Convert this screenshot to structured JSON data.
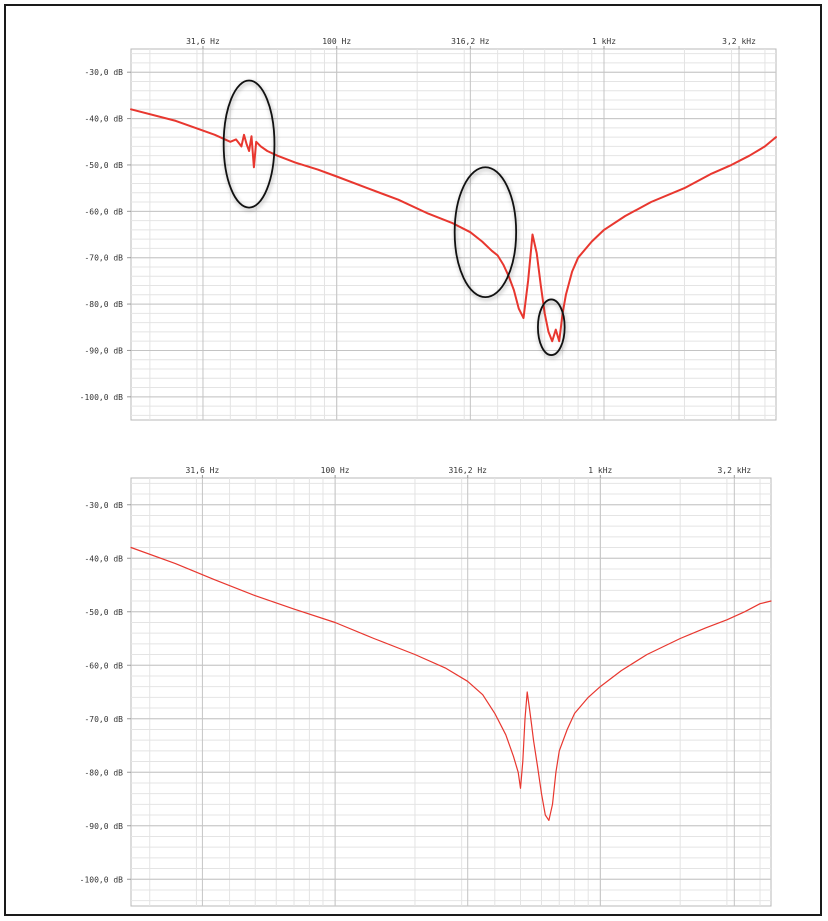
{
  "colors": {
    "trace": "#e8372f",
    "grid": "#c4c4c4",
    "frame": "#1a1a1a"
  },
  "chart_data": [
    {
      "type": "line",
      "title": "",
      "xlabel": "",
      "ylabel": "",
      "x_scale": "log",
      "xlim": [
        17,
        4400
      ],
      "ylim": [
        -105,
        -25
      ],
      "grid": true,
      "x_ticks": [
        {
          "value": 31.6,
          "label": "31,6 Hz"
        },
        {
          "value": 100,
          "label": "100 Hz"
        },
        {
          "value": 316.2,
          "label": "316,2 Hz"
        },
        {
          "value": 1000,
          "label": "1 kHz"
        },
        {
          "value": 3200,
          "label": "3,2 kHz"
        }
      ],
      "y_ticks": [
        {
          "value": -30,
          "label": "-30,0 dB"
        },
        {
          "value": -40,
          "label": "-40,0 dB"
        },
        {
          "value": -50,
          "label": "-50,0 dB"
        },
        {
          "value": -60,
          "label": "-60,0 dB"
        },
        {
          "value": -70,
          "label": "-70,0 dB"
        },
        {
          "value": -80,
          "label": "-80,0 dB"
        },
        {
          "value": -90,
          "label": "-90,0 dB"
        },
        {
          "value": -100,
          "label": "-100,0 dB"
        }
      ],
      "series": [
        {
          "x": [
            17,
            25,
            35,
            40,
            42,
            44,
            45,
            46,
            47,
            48,
            49,
            50,
            52,
            55,
            60,
            70,
            85,
            100,
            130,
            170,
            220,
            270,
            316,
            350,
            380,
            400,
            420,
            440,
            460,
            480,
            500,
            520,
            540,
            560,
            580,
            600,
            620,
            640,
            660,
            680,
            700,
            720,
            760,
            800,
            900,
            1000,
            1200,
            1500,
            2000,
            2500,
            3000,
            3500,
            4000,
            4400
          ],
          "y": [
            -38,
            -40.5,
            -43.5,
            -45,
            -44.5,
            -46,
            -43.5,
            -45.5,
            -47,
            -43.8,
            -50.5,
            -45,
            -46,
            -47,
            -48,
            -49.5,
            -51,
            -52.5,
            -55,
            -57.5,
            -60.5,
            -62.5,
            -64.5,
            -66.5,
            -68.5,
            -69.5,
            -71.5,
            -74,
            -77,
            -81,
            -83,
            -75,
            -65,
            -69,
            -76,
            -82,
            -86,
            -88,
            -85.5,
            -88,
            -82,
            -78,
            -73,
            -70,
            -66.5,
            -64,
            -61,
            -58,
            -55,
            -52,
            -50,
            -48,
            -46,
            -44
          ]
        }
      ],
      "annotations": [
        {
          "shape": "circle",
          "cx": 47,
          "cy": -45.5,
          "rx": 0.095,
          "ry": 13.7
        },
        {
          "shape": "circle",
          "cx": 360,
          "cy": -64.5,
          "rx": 0.115,
          "ry": 14
        },
        {
          "shape": "circle",
          "cx": 635,
          "cy": -85,
          "rx": 0.05,
          "ry": 6
        }
      ]
    },
    {
      "type": "line",
      "title": "",
      "xlabel": "",
      "ylabel": "",
      "x_scale": "log",
      "xlim": [
        17,
        4400
      ],
      "ylim": [
        -105,
        -25
      ],
      "grid": true,
      "x_ticks": [
        {
          "value": 31.6,
          "label": "31,6 Hz"
        },
        {
          "value": 100,
          "label": "100 Hz"
        },
        {
          "value": 316.2,
          "label": "316,2 Hz"
        },
        {
          "value": 1000,
          "label": "1 kHz"
        },
        {
          "value": 3200,
          "label": "3,2 kHz"
        }
      ],
      "y_ticks": [
        {
          "value": -30,
          "label": "-30,0 dB"
        },
        {
          "value": -40,
          "label": "-40,0 dB"
        },
        {
          "value": -50,
          "label": "-50,0 dB"
        },
        {
          "value": -60,
          "label": "-60,0 dB"
        },
        {
          "value": -70,
          "label": "-70,0 dB"
        },
        {
          "value": -80,
          "label": "-80,0 dB"
        },
        {
          "value": -90,
          "label": "-90,0 dB"
        },
        {
          "value": -100,
          "label": "-100,0 dB"
        }
      ],
      "series": [
        {
          "x": [
            17,
            25,
            35,
            50,
            70,
            100,
            140,
            200,
            260,
            316,
            360,
            400,
            440,
            470,
            490,
            500,
            510,
            520,
            530,
            540,
            550,
            560,
            580,
            600,
            620,
            640,
            660,
            680,
            700,
            750,
            800,
            900,
            1000,
            1200,
            1500,
            2000,
            2500,
            3000,
            3500,
            4000,
            4400
          ],
          "y": [
            -38,
            -41,
            -44,
            -47,
            -49.5,
            -52,
            -55,
            -58,
            -60.5,
            -63,
            -65.5,
            -69,
            -73,
            -77,
            -80,
            -83,
            -78,
            -70,
            -65,
            -68,
            -71,
            -74,
            -79,
            -84,
            -88,
            -89,
            -86,
            -80,
            -76,
            -72,
            -69,
            -66,
            -64,
            -61,
            -58,
            -55,
            -53,
            -51.5,
            -50,
            -48.5,
            -48
          ]
        }
      ]
    }
  ]
}
